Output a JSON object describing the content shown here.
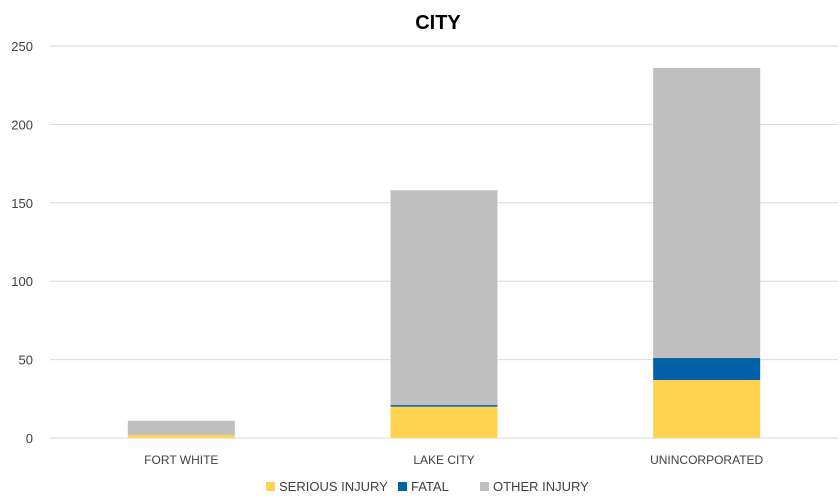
{
  "chart_data": {
    "type": "bar",
    "stacked": true,
    "title": "CITY",
    "categories": [
      "FORT WHITE",
      "LAKE CITY",
      "UNINCORPORATED"
    ],
    "series": [
      {
        "name": "SERIOUS INJURY",
        "color": "#FFD34F",
        "values": [
          2,
          20,
          37
        ]
      },
      {
        "name": "FATAL",
        "color": "#0060A8",
        "values": [
          0,
          1,
          14
        ]
      },
      {
        "name": "OTHER INJURY",
        "color": "#BFBFBF",
        "values": [
          9,
          137,
          185
        ]
      }
    ],
    "ylim": [
      0,
      250
    ],
    "yticks": [
      0,
      50,
      100,
      150,
      200,
      250
    ],
    "grid": true,
    "legend": "bottom",
    "xlabel": "",
    "ylabel": ""
  }
}
